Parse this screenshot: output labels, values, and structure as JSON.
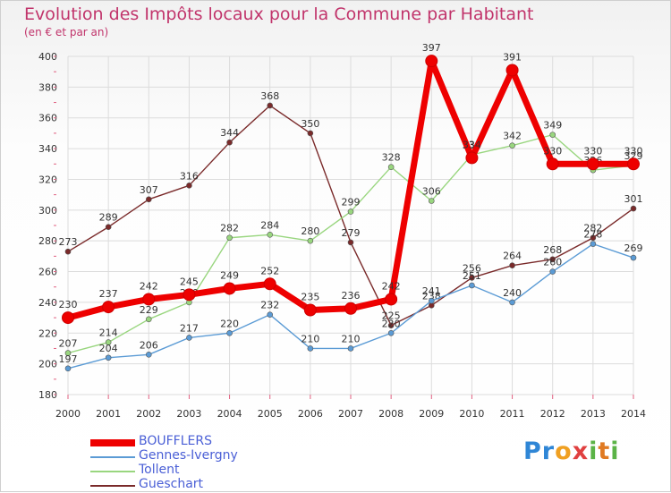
{
  "title": "Evolution des Impôts locaux pour la Commune par Habitant",
  "subtitle": "(en € et par an)",
  "brand": {
    "text": "Proxiti",
    "letters": [
      "P",
      "r",
      "o",
      "x",
      "i",
      "t",
      "i"
    ],
    "colors": [
      "#2f86d6",
      "#2f86d6",
      "#f0a022",
      "#e04040",
      "#5bb347",
      "#e07a22",
      "#5bb347"
    ]
  },
  "chart_data": {
    "type": "line",
    "x": [
      "2000",
      "2001",
      "2002",
      "2003",
      "2004",
      "2005",
      "2006",
      "2007",
      "2008",
      "2009",
      "2010",
      "2011",
      "2012",
      "2013",
      "2014"
    ],
    "ylim": [
      180,
      400
    ],
    "yticks": [
      180,
      200,
      220,
      240,
      260,
      280,
      300,
      320,
      340,
      360,
      380,
      400
    ],
    "grid": true,
    "legend": "bottom-left",
    "series": [
      {
        "name": "Gueschart",
        "color": "#7a2a2a",
        "values": [
          273,
          289,
          307,
          316,
          344,
          368,
          350,
          279,
          225,
          238,
          256,
          264,
          268,
          282,
          301
        ]
      },
      {
        "name": "Tollent",
        "color": "#99d67f",
        "values": [
          207,
          214,
          229,
          240,
          282,
          284,
          280,
          299,
          328,
          306,
          336,
          342,
          349,
          326,
          329
        ]
      },
      {
        "name": "Gennes-Ivergny",
        "color": "#5b9bd5",
        "values": [
          197,
          204,
          206,
          217,
          220,
          232,
          210,
          210,
          220,
          241,
          251,
          240,
          260,
          278,
          269
        ]
      },
      {
        "name": "BOUFFLERS",
        "color": "#ee0000",
        "values": [
          230,
          237,
          242,
          245,
          249,
          252,
          235,
          236,
          242,
          397,
          334,
          391,
          330,
          330,
          330
        ]
      }
    ],
    "legend_order": [
      "BOUFFLERS",
      "Gennes-Ivergny",
      "Tollent",
      "Gueschart"
    ]
  }
}
